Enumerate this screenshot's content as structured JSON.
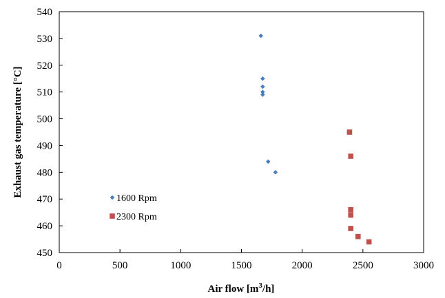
{
  "chart_data": {
    "type": "scatter",
    "xlabel_main": "Air flow [m",
    "xlabel_sup": "3",
    "xlabel_end": "/h]",
    "ylabel": "Exhaust gas temperature [°C]",
    "xlim": [
      0,
      3000
    ],
    "ylim": [
      450,
      540
    ],
    "x_ticks": [
      0,
      500,
      1000,
      1500,
      2000,
      2500,
      3000
    ],
    "y_ticks": [
      450,
      460,
      470,
      480,
      490,
      500,
      510,
      520,
      530,
      540
    ],
    "grid": false,
    "legend_position": "left",
    "series": [
      {
        "name": "1600 Rpm",
        "marker": "diamond",
        "color": "#4A7EBB",
        "points": [
          [
            1660,
            531
          ],
          [
            1675,
            515
          ],
          [
            1675,
            512
          ],
          [
            1675,
            510
          ],
          [
            1675,
            509
          ],
          [
            1720,
            484
          ],
          [
            1780,
            480
          ]
        ]
      },
      {
        "name": "2300 Rpm",
        "marker": "square",
        "color": "#C0504D",
        "points": [
          [
            2390,
            495
          ],
          [
            2400,
            486
          ],
          [
            2400,
            466
          ],
          [
            2400,
            464
          ],
          [
            2400,
            459
          ],
          [
            2460,
            456
          ],
          [
            2550,
            454
          ]
        ]
      }
    ]
  }
}
